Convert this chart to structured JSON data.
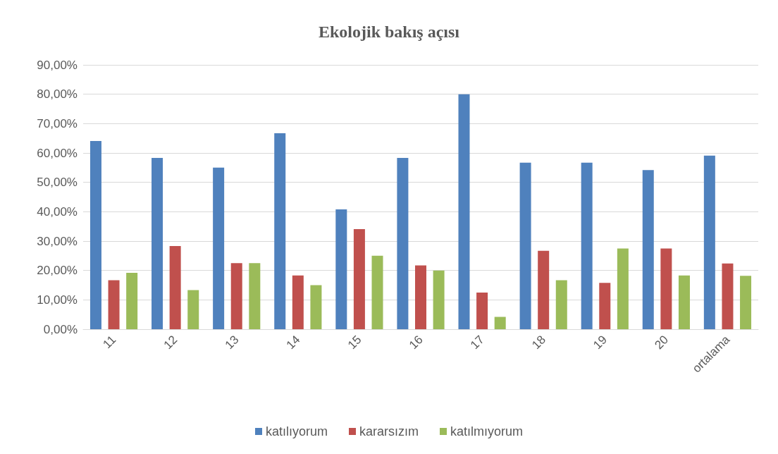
{
  "chart_data": {
    "type": "bar",
    "title": "Ekolojik bakış açısı",
    "categories": [
      "11",
      "12",
      "13",
      "14",
      "15",
      "16",
      "17",
      "18",
      "19",
      "20",
      "ortalama"
    ],
    "series": [
      {
        "name": "katılıyorum",
        "color": "#4f81bd",
        "values": [
          64.1,
          58.3,
          55,
          66.7,
          40.8,
          58.3,
          80,
          56.7,
          56.7,
          54.2,
          59.1
        ]
      },
      {
        "name": "kararsızım",
        "color": "#c0504d",
        "values": [
          16.7,
          28.3,
          22.5,
          18.3,
          34.1,
          21.7,
          12.5,
          26.7,
          15.8,
          27.5,
          22.4
        ]
      },
      {
        "name": "katılmıyorum",
        "color": "#9bbb59",
        "values": [
          19.2,
          13.3,
          22.5,
          15,
          25,
          20,
          4.2,
          16.7,
          27.5,
          18.3,
          18.2
        ]
      }
    ],
    "ylim": [
      0,
      90
    ],
    "yticks": [
      {
        "value": 0,
        "label": "0,00%"
      },
      {
        "value": 10,
        "label": "10,00%"
      },
      {
        "value": 20,
        "label": "20,00%"
      },
      {
        "value": 30,
        "label": "30,00%"
      },
      {
        "value": 40,
        "label": "40,00%"
      },
      {
        "value": 50,
        "label": "50,00%"
      },
      {
        "value": 60,
        "label": "60,00%"
      },
      {
        "value": 70,
        "label": "70,00%"
      },
      {
        "value": 80,
        "label": "80,00%"
      },
      {
        "value": 90,
        "label": "90,00%"
      }
    ],
    "grid": "y",
    "legend": "bottom"
  }
}
